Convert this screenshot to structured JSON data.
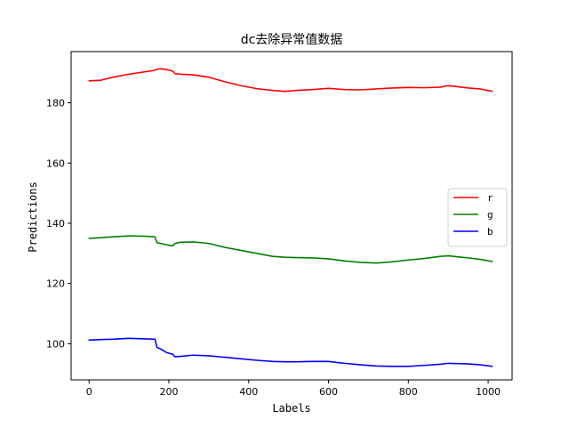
{
  "chart_data": {
    "type": "line",
    "title": "dc去除异常值数据",
    "xlabel": "Labels",
    "ylabel": "Predictions",
    "xlim": [
      -45,
      1060
    ],
    "ylim": [
      88,
      197
    ],
    "xticks": [
      0,
      200,
      400,
      600,
      800,
      1000
    ],
    "yticks": [
      100,
      120,
      140,
      160,
      180
    ],
    "grid": false,
    "legend_position": "center-right",
    "x": [
      0,
      30,
      60,
      100,
      140,
      165,
      170,
      180,
      195,
      210,
      215,
      230,
      260,
      300,
      340,
      380,
      420,
      460,
      490,
      520,
      560,
      600,
      640,
      680,
      720,
      760,
      800,
      840,
      880,
      900,
      920,
      950,
      980,
      1010
    ],
    "series": [
      {
        "name": "r",
        "color": "#ff0000",
        "values": [
          187.3,
          187.5,
          188.5,
          189.5,
          190.3,
          190.8,
          191.2,
          191.3,
          191.0,
          190.5,
          189.7,
          189.5,
          189.3,
          188.5,
          187.0,
          185.7,
          184.7,
          184.1,
          183.8,
          184.1,
          184.4,
          184.8,
          184.4,
          184.3,
          184.6,
          184.9,
          185.1,
          185.0,
          185.2,
          185.7,
          185.4,
          184.9,
          184.6,
          183.8
        ]
      },
      {
        "name": "g",
        "color": "#008000",
        "values": [
          135.0,
          135.2,
          135.5,
          135.8,
          135.7,
          135.5,
          133.5,
          133.3,
          132.8,
          132.5,
          133.3,
          133.7,
          133.8,
          133.3,
          132.0,
          131.0,
          130.0,
          129.0,
          128.7,
          128.6,
          128.5,
          128.2,
          127.5,
          127.0,
          126.8,
          127.2,
          127.8,
          128.3,
          129.0,
          129.2,
          128.9,
          128.5,
          128.0,
          127.3
        ]
      },
      {
        "name": "b",
        "color": "#0000ff",
        "values": [
          101.2,
          101.4,
          101.5,
          101.8,
          101.6,
          101.5,
          98.8,
          98.2,
          97.0,
          96.5,
          95.7,
          95.8,
          96.2,
          96.0,
          95.5,
          95.0,
          94.5,
          94.1,
          94.0,
          94.0,
          94.1,
          94.1,
          93.5,
          93.0,
          92.6,
          92.5,
          92.5,
          92.8,
          93.2,
          93.5,
          93.4,
          93.3,
          93.0,
          92.5
        ]
      }
    ]
  }
}
